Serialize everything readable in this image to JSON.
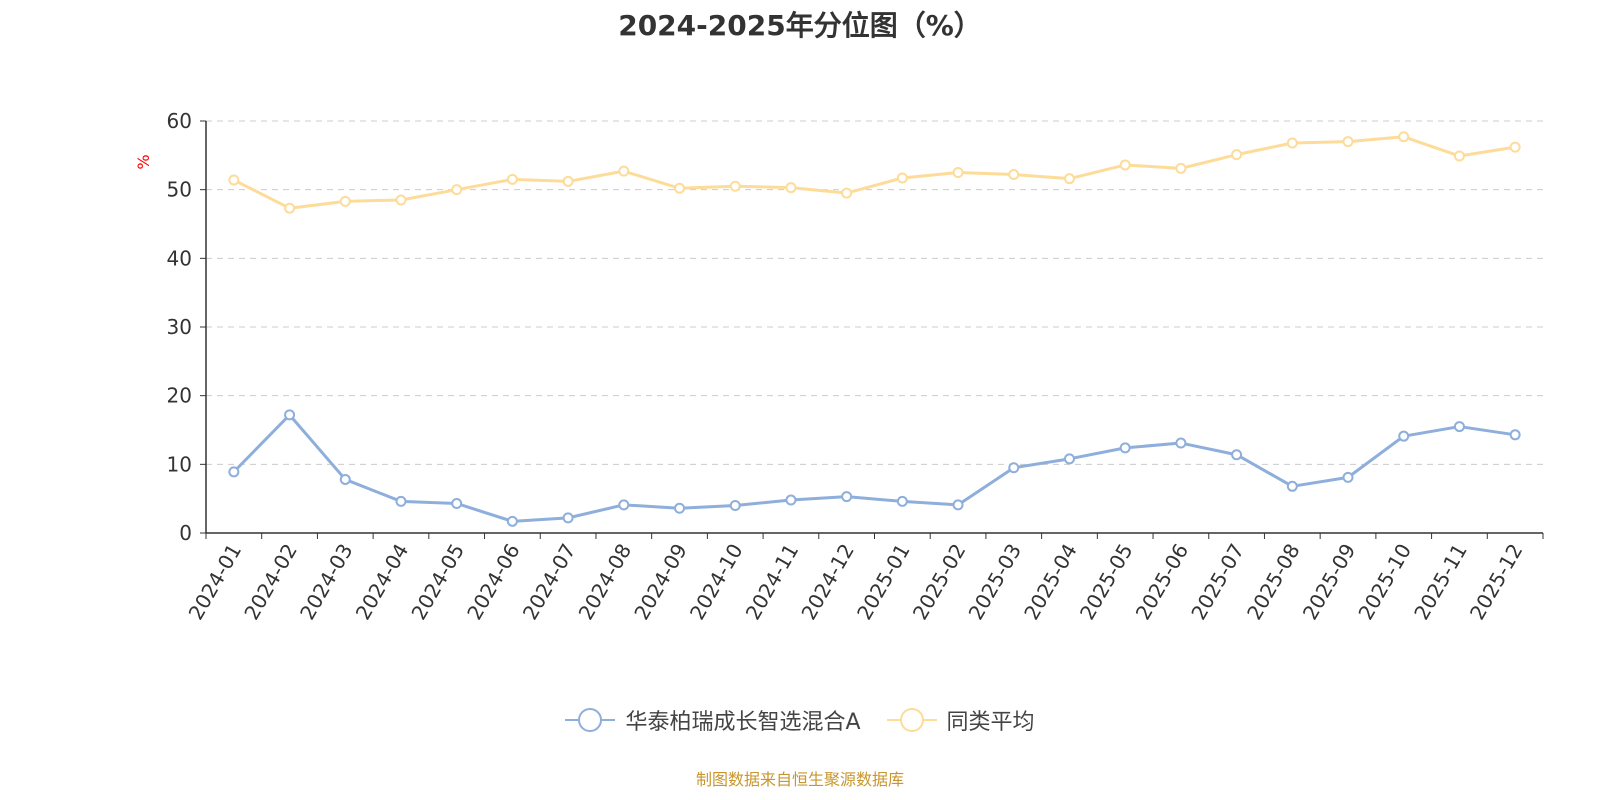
{
  "chart_data": {
    "type": "line",
    "title": "2024-2025年分位图（%）",
    "ylabel": "%",
    "ylim": [
      0,
      60
    ],
    "yticks": [
      "0",
      "10",
      "20",
      "30",
      "40",
      "50",
      "60"
    ],
    "grid": true,
    "legend_position": "bottom",
    "categories": [
      "2024-01",
      "2024-02",
      "2024-03",
      "2024-04",
      "2024-05",
      "2024-06",
      "2024-07",
      "2024-08",
      "2024-09",
      "2024-10",
      "2024-11",
      "2024-12",
      "2025-01",
      "2025-02",
      "2025-03",
      "2025-04",
      "2025-05",
      "2025-06",
      "2025-07",
      "2025-08",
      "2025-09",
      "2025-10",
      "2025-11",
      "2025-12"
    ],
    "series": [
      {
        "name": "华泰柏瑞成长智选混合A",
        "color": "#8eaedb",
        "values": [
          8.9,
          17.2,
          7.8,
          4.6,
          4.3,
          1.7,
          2.2,
          4.1,
          3.6,
          4.0,
          4.8,
          5.3,
          4.6,
          4.1,
          9.5,
          10.8,
          12.4,
          13.1,
          11.4,
          6.8,
          8.1,
          14.1,
          15.5,
          14.3
        ]
      },
      {
        "name": "同类平均",
        "color": "#fddc9a",
        "values": [
          51.4,
          47.3,
          48.3,
          48.5,
          50.0,
          51.5,
          51.2,
          52.7,
          50.2,
          50.5,
          50.3,
          49.5,
          51.7,
          52.5,
          52.2,
          51.6,
          53.6,
          53.1,
          55.1,
          56.8,
          57.0,
          57.7,
          54.9,
          56.2
        ]
      }
    ]
  },
  "footer": "制图数据来自恒生聚源数据库",
  "colors": {
    "axis": "#333333",
    "grid": "#cccccc",
    "ylabel": "#ff0000",
    "footer": "#c8962e"
  }
}
